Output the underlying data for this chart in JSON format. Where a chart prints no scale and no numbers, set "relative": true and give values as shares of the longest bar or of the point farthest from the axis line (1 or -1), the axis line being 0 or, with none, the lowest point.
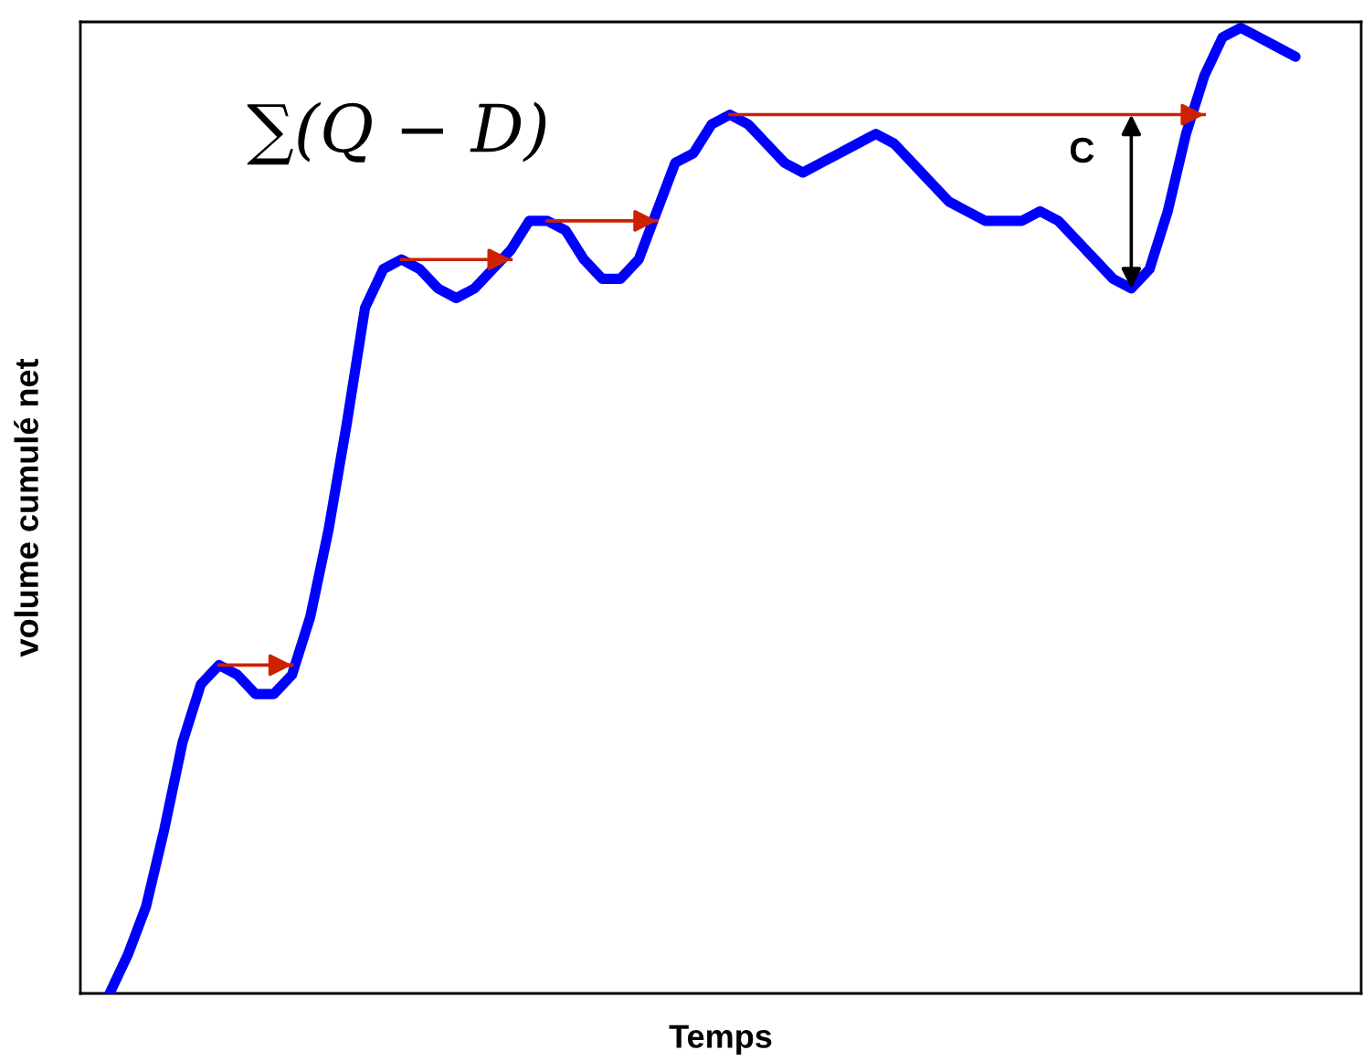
{
  "chart_data": {
    "type": "line",
    "relative": true,
    "xlabel": "Temps",
    "ylabel": "volume cumulé net",
    "categories": [
      null,
      null,
      null,
      null,
      null,
      null,
      null,
      null,
      null,
      null,
      null,
      null,
      null,
      null,
      null,
      null,
      null,
      null,
      null,
      null,
      null,
      null,
      null,
      null,
      null,
      null,
      null,
      null,
      null,
      null,
      null,
      null,
      null,
      null,
      null,
      null,
      null,
      null,
      null,
      null,
      null,
      null,
      null,
      null,
      null,
      null,
      null,
      null,
      null,
      null,
      null,
      null,
      null,
      null,
      null,
      null,
      null,
      null,
      null,
      null,
      null,
      null,
      null,
      null,
      null,
      null
    ],
    "series": [
      {
        "color": "#0000ff",
        "values": [
          0,
          0.04,
          0.09,
          0.17,
          0.26,
          0.32,
          0.34,
          0.33,
          0.31,
          0.31,
          0.33,
          0.39,
          0.48,
          0.59,
          0.71,
          0.75,
          0.76,
          0.75,
          0.73,
          0.72,
          0.73,
          0.75,
          0.77,
          0.8,
          0.8,
          0.79,
          0.76,
          0.74,
          0.74,
          0.76,
          0.81,
          0.86,
          0.87,
          0.9,
          0.91,
          0.9,
          0.88,
          0.86,
          0.85,
          0.86,
          0.87,
          0.88,
          0.89,
          0.88,
          0.86,
          0.84,
          0.82,
          0.81,
          0.8,
          0.8,
          0.8,
          0.81,
          0.8,
          0.78,
          0.76,
          0.74,
          0.73,
          0.75,
          0.81,
          0.89,
          0.95,
          0.99,
          1.0,
          0.99,
          0.98,
          0.97
        ]
      },
      {
        "color": "#cc2200",
        "values": [
          null,
          null,
          null,
          null,
          null,
          null,
          0.34,
          0.34,
          0.34,
          0.34,
          0.34,
          null,
          null,
          null,
          null,
          null,
          null,
          null,
          null,
          null,
          null,
          null,
          null,
          null,
          null,
          null,
          null,
          null,
          null,
          null,
          null,
          null,
          null,
          null,
          null,
          null,
          null,
          null,
          null,
          null,
          null,
          null,
          null,
          null,
          null,
          null,
          null,
          null,
          null,
          null,
          null,
          null,
          null,
          null,
          null,
          null,
          null,
          null,
          null,
          null,
          null,
          null,
          null,
          null,
          null,
          null
        ]
      },
      {
        "color": "#cc2200",
        "values": [
          null,
          null,
          null,
          null,
          null,
          null,
          null,
          null,
          null,
          null,
          null,
          null,
          null,
          null,
          null,
          null,
          0.76,
          0.76,
          0.76,
          0.76,
          0.76,
          0.76,
          0.76,
          null,
          null,
          null,
          null,
          null,
          null,
          null,
          null,
          null,
          null,
          null,
          null,
          null,
          null,
          null,
          null,
          null,
          null,
          null,
          null,
          null,
          null,
          null,
          null,
          null,
          null,
          null,
          null,
          null,
          null,
          null,
          null,
          null,
          null,
          null,
          null,
          null,
          null,
          null,
          null,
          null,
          null,
          null
        ]
      },
      {
        "color": "#cc2200",
        "values": [
          null,
          null,
          null,
          null,
          null,
          null,
          null,
          null,
          null,
          null,
          null,
          null,
          null,
          null,
          null,
          null,
          null,
          null,
          null,
          null,
          null,
          null,
          null,
          null,
          0.8,
          0.8,
          0.8,
          0.8,
          0.8,
          0.8,
          0.8,
          null,
          null,
          null,
          null,
          null,
          null,
          null,
          null,
          null,
          null,
          null,
          null,
          null,
          null,
          null,
          null,
          null,
          null,
          null,
          null,
          null,
          null,
          null,
          null,
          null,
          null,
          null,
          null,
          null,
          null,
          null,
          null,
          null,
          null,
          null
        ]
      },
      {
        "color": "#cc2200",
        "values": [
          null,
          null,
          null,
          null,
          null,
          null,
          null,
          null,
          null,
          null,
          null,
          null,
          null,
          null,
          null,
          null,
          null,
          null,
          null,
          null,
          null,
          null,
          null,
          null,
          null,
          null,
          null,
          null,
          null,
          null,
          null,
          null,
          null,
          null,
          0.91,
          0.91,
          0.91,
          0.91,
          0.91,
          0.91,
          0.91,
          0.91,
          0.91,
          0.91,
          0.91,
          0.91,
          0.91,
          0.91,
          0.91,
          0.91,
          0.91,
          0.91,
          0.91,
          0.91,
          0.91,
          0.91,
          0.91,
          0.91,
          0.91,
          0.91,
          0.91,
          null,
          null,
          null,
          null,
          null
        ]
      }
    ],
    "annotations": [
      "∑(Q − D)",
      "C"
    ]
  }
}
